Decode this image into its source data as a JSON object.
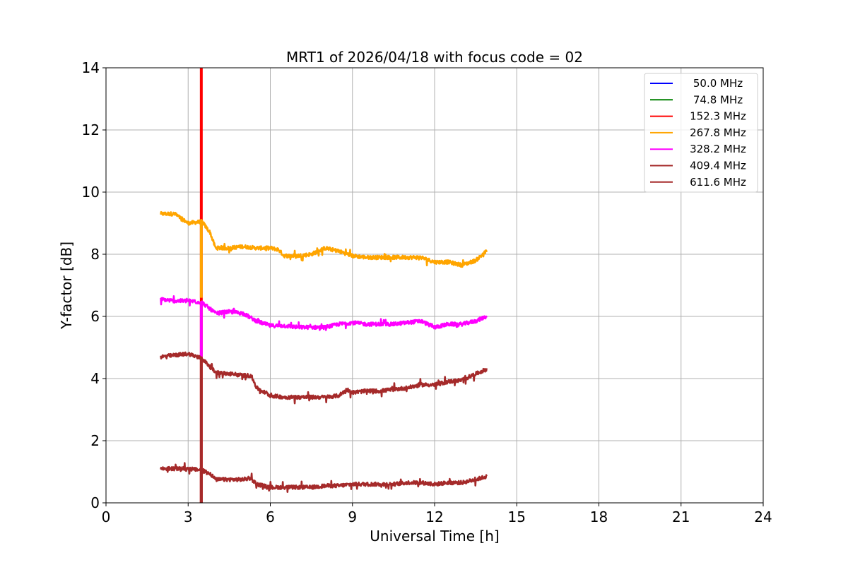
{
  "chart_data": {
    "type": "line",
    "title": "MRT1 of 2026/04/18 with focus code = 02",
    "xlabel": "Universal Time [h]",
    "ylabel": "Y-factor [dB]",
    "xlim": [
      0,
      24
    ],
    "ylim": [
      0,
      14
    ],
    "xticks": [
      0,
      3,
      6,
      9,
      12,
      15,
      18,
      21,
      24
    ],
    "yticks": [
      0,
      2,
      4,
      6,
      8,
      10,
      12,
      14
    ],
    "xtick_labels": [
      "0",
      "3",
      "6",
      "9",
      "12",
      "15",
      "18",
      "21",
      "24"
    ],
    "ytick_labels": [
      "0",
      "2",
      "4",
      "6",
      "8",
      "10",
      "12",
      "14"
    ],
    "grid": true,
    "legend_position": "top-right",
    "series": [
      {
        "name": " 50.0 MHz",
        "color": "#0000ff",
        "x": [],
        "y": []
      },
      {
        "name": " 74.8 MHz",
        "color": "#008000",
        "x": [],
        "y": []
      },
      {
        "name": "152.3 MHz",
        "color": "#ff0000",
        "x": [
          3.48,
          3.48
        ],
        "y": [
          14,
          14
        ],
        "spike": {
          "x": 3.48,
          "y_from": 0,
          "y_to": 14
        }
      },
      {
        "name": "267.8 MHz",
        "color": "#ffa500",
        "x": [
          2.0,
          2.5,
          3.0,
          3.5,
          3.8,
          4.0,
          4.5,
          5.0,
          5.5,
          6.0,
          6.3,
          6.5,
          7.0,
          7.5,
          8.0,
          8.5,
          9.0,
          9.5,
          10.0,
          10.5,
          11.0,
          11.5,
          12.0,
          12.5,
          13.0,
          13.5,
          13.9
        ],
        "y": [
          9.3,
          9.3,
          9.0,
          9.05,
          8.7,
          8.2,
          8.2,
          8.25,
          8.2,
          8.2,
          8.15,
          7.95,
          7.95,
          8.0,
          8.2,
          8.1,
          7.95,
          7.9,
          7.9,
          7.9,
          7.9,
          7.9,
          7.75,
          7.75,
          7.65,
          7.8,
          8.1
        ],
        "spike": {
          "x": 3.48,
          "y_from": 6.6,
          "y_to": 9.05
        }
      },
      {
        "name": "328.2 MHz",
        "color": "#ff00ff",
        "x": [
          2.0,
          2.5,
          3.0,
          3.5,
          4.0,
          4.5,
          5.0,
          5.5,
          6.0,
          6.5,
          7.0,
          7.5,
          8.0,
          8.5,
          9.0,
          9.5,
          10.0,
          10.5,
          11.0,
          11.5,
          12.0,
          12.5,
          13.0,
          13.5,
          13.9
        ],
        "y": [
          6.55,
          6.5,
          6.5,
          6.45,
          6.1,
          6.15,
          6.1,
          5.85,
          5.7,
          5.7,
          5.65,
          5.65,
          5.65,
          5.75,
          5.8,
          5.75,
          5.75,
          5.75,
          5.8,
          5.85,
          5.65,
          5.75,
          5.75,
          5.85,
          6.0
        ],
        "spike": {
          "x": 3.48,
          "y_from": 4.7,
          "y_to": 6.45
        }
      },
      {
        "name": "409.4 MHz",
        "color": "#a52a2a",
        "x": [
          2.0,
          2.5,
          3.0,
          3.5,
          4.0,
          4.5,
          5.0,
          5.3,
          5.5,
          6.0,
          6.5,
          7.0,
          7.5,
          8.0,
          8.5,
          8.8,
          9.0,
          9.5,
          10.0,
          10.5,
          11.0,
          11.5,
          12.0,
          12.5,
          13.0,
          13.5,
          13.9
        ],
        "y": [
          4.7,
          4.75,
          4.8,
          4.65,
          4.2,
          4.15,
          4.1,
          4.1,
          3.7,
          3.45,
          3.4,
          3.4,
          3.4,
          3.4,
          3.45,
          3.65,
          3.55,
          3.6,
          3.6,
          3.65,
          3.7,
          3.8,
          3.8,
          3.9,
          3.95,
          4.15,
          4.3
        ],
        "spike": {
          "x": 3.48,
          "y_from": 0,
          "y_to": 4.65
        }
      },
      {
        "name": "611.6 MHz",
        "color": "#a52a2a",
        "x": [
          2.0,
          2.5,
          3.0,
          3.5,
          3.8,
          4.0,
          4.5,
          5.0,
          5.3,
          5.5,
          6.0,
          6.5,
          7.0,
          7.5,
          8.0,
          8.5,
          9.0,
          9.5,
          10.0,
          10.5,
          11.0,
          11.5,
          12.0,
          12.5,
          13.0,
          13.5,
          13.9
        ],
        "y": [
          1.1,
          1.1,
          1.1,
          1.05,
          0.95,
          0.75,
          0.75,
          0.75,
          0.8,
          0.6,
          0.5,
          0.5,
          0.5,
          0.5,
          0.55,
          0.55,
          0.6,
          0.6,
          0.6,
          0.6,
          0.65,
          0.65,
          0.6,
          0.65,
          0.65,
          0.75,
          0.85
        ],
        "spike": {
          "x": 3.48,
          "y_from": 0,
          "y_to": 1.05
        }
      }
    ]
  }
}
